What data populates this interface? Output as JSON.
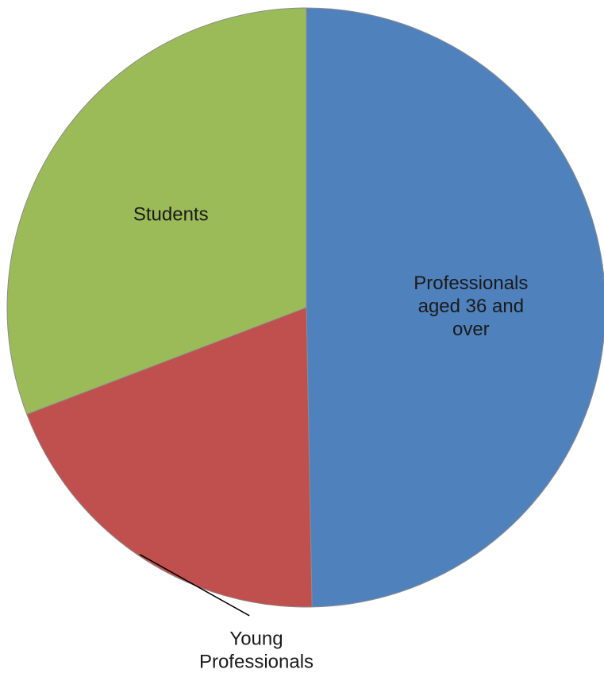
{
  "chart_data": {
    "type": "pie",
    "start_angle_deg": 0,
    "direction": "clockwise",
    "slices": [
      {
        "name": "Professionals aged 36 and over",
        "label_lines": [
          "Professionals",
          "aged 36 and",
          "over"
        ],
        "value": 49.7,
        "color": "#4f81bd",
        "label_placement": "inside"
      },
      {
        "name": "Young Professionals",
        "label_lines": [
          "Young",
          "Professionals"
        ],
        "value": 19.5,
        "color": "#c0504d",
        "label_placement": "outside-leader"
      },
      {
        "name": "Students",
        "label_lines": [
          "Students"
        ],
        "value": 30.8,
        "color": "#9bbb59",
        "label_placement": "inside"
      }
    ]
  }
}
